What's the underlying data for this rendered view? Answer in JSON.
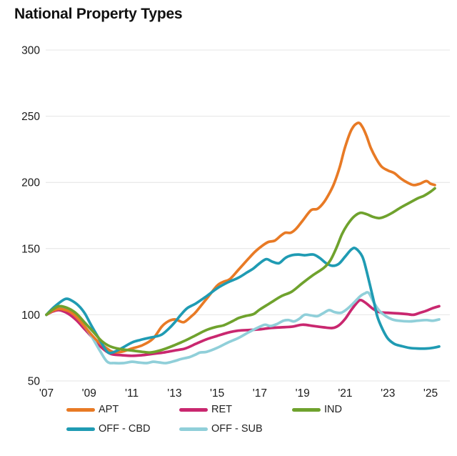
{
  "title": "National Property Types",
  "colors": {
    "title_text": "#111111",
    "axis_text": "#1a1a1a",
    "gridline": "#e4e4e4",
    "background": "#ffffff"
  },
  "chart_data": {
    "type": "line",
    "title": "National Property Types",
    "xlabel": "",
    "ylabel": "",
    "grid": "horizontal-only",
    "legend_position": "bottom",
    "ylim": [
      50,
      300
    ],
    "xlim": [
      2006.9,
      2025.6
    ],
    "y_ticks": [
      300,
      250,
      200,
      150,
      100,
      50
    ],
    "x_tick_years": [
      2007,
      2009,
      2011,
      2013,
      2015,
      2017,
      2019,
      2021,
      2023,
      2025
    ],
    "x_tick_labels": [
      "'07",
      "'09",
      "'11",
      "'13",
      "'15",
      "'17",
      "'19",
      "'21",
      "'23",
      "'25"
    ],
    "draw_order": [
      "RET",
      "OFF - SUB",
      "APT",
      "OFF - CBD",
      "IND"
    ],
    "series": [
      {
        "name": "APT",
        "color": "#e87a25",
        "points": [
          [
            2007,
            100
          ],
          [
            2007.3,
            103
          ],
          [
            2007.6,
            104.5
          ],
          [
            2008,
            103
          ],
          [
            2008.3,
            100
          ],
          [
            2008.6,
            95
          ],
          [
            2009,
            87
          ],
          [
            2009.4,
            80
          ],
          [
            2009.8,
            75
          ],
          [
            2010.1,
            72
          ],
          [
            2010.5,
            72
          ],
          [
            2011,
            74.5
          ],
          [
            2011.5,
            77
          ],
          [
            2012,
            82
          ],
          [
            2012.4,
            91
          ],
          [
            2012.7,
            95
          ],
          [
            2013,
            96.5
          ],
          [
            2013.2,
            95.5
          ],
          [
            2013.45,
            94.5
          ],
          [
            2013.8,
            99
          ],
          [
            2014,
            102
          ],
          [
            2014.5,
            112
          ],
          [
            2015,
            122
          ],
          [
            2015.3,
            125
          ],
          [
            2015.6,
            127
          ],
          [
            2016,
            134
          ],
          [
            2016.5,
            143
          ],
          [
            2016.8,
            148
          ],
          [
            2017.1,
            152
          ],
          [
            2017.4,
            155
          ],
          [
            2017.7,
            156
          ],
          [
            2018,
            160
          ],
          [
            2018.2,
            162
          ],
          [
            2018.45,
            162
          ],
          [
            2018.7,
            165
          ],
          [
            2019,
            171
          ],
          [
            2019.4,
            179
          ],
          [
            2019.7,
            180
          ],
          [
            2020,
            185
          ],
          [
            2020.3,
            193
          ],
          [
            2020.5,
            200
          ],
          [
            2020.75,
            212
          ],
          [
            2021,
            227
          ],
          [
            2021.3,
            240
          ],
          [
            2021.6,
            245
          ],
          [
            2021.8,
            242
          ],
          [
            2022,
            235
          ],
          [
            2022.2,
            226
          ],
          [
            2022.45,
            218
          ],
          [
            2022.7,
            212
          ],
          [
            2023,
            209
          ],
          [
            2023.3,
            207
          ],
          [
            2023.6,
            203
          ],
          [
            2023.9,
            200
          ],
          [
            2024.2,
            198
          ],
          [
            2024.5,
            199
          ],
          [
            2024.8,
            201
          ],
          [
            2025,
            199
          ],
          [
            2025.2,
            198
          ]
        ]
      },
      {
        "name": "RET",
        "color": "#c9276f",
        "points": [
          [
            2007,
            100
          ],
          [
            2007.3,
            102.5
          ],
          [
            2007.6,
            103.5
          ],
          [
            2008,
            101
          ],
          [
            2008.4,
            96
          ],
          [
            2008.8,
            89
          ],
          [
            2009.2,
            82
          ],
          [
            2009.6,
            75
          ],
          [
            2010,
            70.5
          ],
          [
            2010.5,
            69.5
          ],
          [
            2011,
            69
          ],
          [
            2011.5,
            69.5
          ],
          [
            2012,
            70.5
          ],
          [
            2012.5,
            71.5
          ],
          [
            2013,
            73
          ],
          [
            2013.5,
            74.5
          ],
          [
            2014,
            78
          ],
          [
            2014.5,
            81.5
          ],
          [
            2015,
            84
          ],
          [
            2015.5,
            86.5
          ],
          [
            2016,
            88
          ],
          [
            2016.5,
            88.5
          ],
          [
            2017,
            89
          ],
          [
            2017.5,
            90
          ],
          [
            2018,
            90.5
          ],
          [
            2018.5,
            91
          ],
          [
            2019,
            92.5
          ],
          [
            2019.5,
            91.5
          ],
          [
            2020,
            90.5
          ],
          [
            2020.4,
            90
          ],
          [
            2020.7,
            92
          ],
          [
            2021,
            97
          ],
          [
            2021.3,
            104
          ],
          [
            2021.6,
            110
          ],
          [
            2021.75,
            111
          ],
          [
            2022,
            108.5
          ],
          [
            2022.3,
            104.5
          ],
          [
            2022.6,
            102
          ],
          [
            2023,
            101.5
          ],
          [
            2023.5,
            101
          ],
          [
            2023.9,
            100.5
          ],
          [
            2024.2,
            100
          ],
          [
            2024.5,
            101.5
          ],
          [
            2024.8,
            103
          ],
          [
            2025.1,
            105
          ],
          [
            2025.4,
            106.5
          ]
        ]
      },
      {
        "name": "IND",
        "color": "#6fa22d",
        "points": [
          [
            2007,
            100
          ],
          [
            2007.3,
            104
          ],
          [
            2007.6,
            106.5
          ],
          [
            2008,
            105
          ],
          [
            2008.4,
            101
          ],
          [
            2008.8,
            94
          ],
          [
            2009.2,
            87
          ],
          [
            2009.6,
            80
          ],
          [
            2010,
            76
          ],
          [
            2010.5,
            74
          ],
          [
            2011,
            73
          ],
          [
            2011.5,
            72
          ],
          [
            2011.85,
            71.5
          ],
          [
            2012.2,
            72.5
          ],
          [
            2012.6,
            74.5
          ],
          [
            2013,
            77
          ],
          [
            2013.5,
            80.5
          ],
          [
            2014,
            84.5
          ],
          [
            2014.5,
            88.5
          ],
          [
            2015,
            91
          ],
          [
            2015.3,
            92
          ],
          [
            2015.7,
            95
          ],
          [
            2016,
            97.5
          ],
          [
            2016.3,
            99
          ],
          [
            2016.7,
            100.5
          ],
          [
            2017,
            104
          ],
          [
            2017.5,
            109
          ],
          [
            2018,
            114
          ],
          [
            2018.5,
            117.5
          ],
          [
            2019,
            124
          ],
          [
            2019.5,
            130
          ],
          [
            2020,
            135.5
          ],
          [
            2020.3,
            141
          ],
          [
            2020.6,
            151
          ],
          [
            2020.85,
            161
          ],
          [
            2021.1,
            168
          ],
          [
            2021.4,
            174
          ],
          [
            2021.7,
            177
          ],
          [
            2022,
            176
          ],
          [
            2022.3,
            174
          ],
          [
            2022.6,
            173
          ],
          [
            2022.9,
            174.5
          ],
          [
            2023.2,
            177
          ],
          [
            2023.6,
            181
          ],
          [
            2024,
            184.5
          ],
          [
            2024.4,
            188
          ],
          [
            2024.7,
            190
          ],
          [
            2025,
            193
          ],
          [
            2025.2,
            195.5
          ]
        ]
      },
      {
        "name": "OFF - CBD",
        "color": "#1f9bb3",
        "points": [
          [
            2007,
            100
          ],
          [
            2007.3,
            105
          ],
          [
            2007.6,
            109
          ],
          [
            2007.9,
            112
          ],
          [
            2008.15,
            111
          ],
          [
            2008.5,
            107
          ],
          [
            2008.8,
            101
          ],
          [
            2009.1,
            92
          ],
          [
            2009.5,
            81
          ],
          [
            2009.85,
            72
          ],
          [
            2010.1,
            71.5
          ],
          [
            2010.5,
            74.5
          ],
          [
            2011,
            79
          ],
          [
            2011.4,
            81
          ],
          [
            2011.8,
            82.5
          ],
          [
            2012.1,
            83.5
          ],
          [
            2012.4,
            85
          ],
          [
            2012.7,
            89
          ],
          [
            2013,
            94
          ],
          [
            2013.3,
            100
          ],
          [
            2013.6,
            105
          ],
          [
            2014,
            108.5
          ],
          [
            2014.5,
            114
          ],
          [
            2015,
            120
          ],
          [
            2015.5,
            124.5
          ],
          [
            2016,
            128
          ],
          [
            2016.4,
            132
          ],
          [
            2016.7,
            135
          ],
          [
            2017,
            139
          ],
          [
            2017.3,
            142
          ],
          [
            2017.6,
            140
          ],
          [
            2017.9,
            139
          ],
          [
            2018.2,
            143
          ],
          [
            2018.5,
            145
          ],
          [
            2018.8,
            145.5
          ],
          [
            2019.1,
            145
          ],
          [
            2019.5,
            145.5
          ],
          [
            2019.8,
            143
          ],
          [
            2020.1,
            139
          ],
          [
            2020.4,
            137
          ],
          [
            2020.7,
            138.5
          ],
          [
            2021,
            144
          ],
          [
            2021.3,
            149.5
          ],
          [
            2021.5,
            150
          ],
          [
            2021.8,
            144
          ],
          [
            2022,
            133
          ],
          [
            2022.3,
            113
          ],
          [
            2022.5,
            99
          ],
          [
            2022.75,
            89
          ],
          [
            2023,
            82
          ],
          [
            2023.3,
            78
          ],
          [
            2023.6,
            76.5
          ],
          [
            2024,
            75
          ],
          [
            2024.4,
            74.5
          ],
          [
            2024.8,
            74.5
          ],
          [
            2025.1,
            75
          ],
          [
            2025.4,
            76
          ]
        ]
      },
      {
        "name": "OFF - SUB",
        "color": "#90cfd9",
        "points": [
          [
            2007,
            100
          ],
          [
            2007.3,
            103.5
          ],
          [
            2007.6,
            105.5
          ],
          [
            2007.9,
            104.5
          ],
          [
            2008.3,
            100
          ],
          [
            2008.7,
            93
          ],
          [
            2009.1,
            84
          ],
          [
            2009.5,
            73
          ],
          [
            2009.85,
            64.5
          ],
          [
            2010.2,
            63.5
          ],
          [
            2010.6,
            63.5
          ],
          [
            2011,
            64.5
          ],
          [
            2011.3,
            64
          ],
          [
            2011.7,
            63.5
          ],
          [
            2012,
            64.5
          ],
          [
            2012.3,
            64
          ],
          [
            2012.6,
            63.5
          ],
          [
            2013,
            65
          ],
          [
            2013.3,
            66.5
          ],
          [
            2013.7,
            68
          ],
          [
            2014,
            70
          ],
          [
            2014.2,
            71.5
          ],
          [
            2014.5,
            72
          ],
          [
            2015,
            75
          ],
          [
            2015.5,
            79
          ],
          [
            2016,
            82.5
          ],
          [
            2016.5,
            87
          ],
          [
            2017,
            91
          ],
          [
            2017.25,
            92.5
          ],
          [
            2017.5,
            91.5
          ],
          [
            2017.8,
            93
          ],
          [
            2018.1,
            95.5
          ],
          [
            2018.35,
            96
          ],
          [
            2018.6,
            95
          ],
          [
            2018.85,
            97
          ],
          [
            2019.1,
            100
          ],
          [
            2019.4,
            99.5
          ],
          [
            2019.7,
            99
          ],
          [
            2020,
            101.5
          ],
          [
            2020.25,
            103.5
          ],
          [
            2020.5,
            102
          ],
          [
            2020.8,
            101.5
          ],
          [
            2021.1,
            104.5
          ],
          [
            2021.4,
            109
          ],
          [
            2021.7,
            114
          ],
          [
            2021.9,
            116
          ],
          [
            2022.1,
            116.5
          ],
          [
            2022.35,
            109
          ],
          [
            2022.6,
            103
          ],
          [
            2022.9,
            99
          ],
          [
            2023.2,
            96.5
          ],
          [
            2023.5,
            95.5
          ],
          [
            2024,
            95
          ],
          [
            2024.4,
            95.5
          ],
          [
            2024.8,
            96
          ],
          [
            2025.1,
            95.5
          ],
          [
            2025.4,
            96.5
          ]
        ]
      }
    ]
  }
}
